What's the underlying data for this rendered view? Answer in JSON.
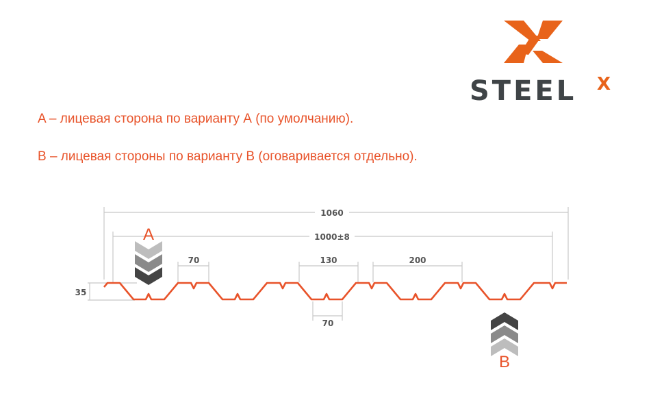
{
  "logo": {
    "text": "STEEL",
    "superscript": "X",
    "brand_color": "#e8631a",
    "text_color": "#3f4447"
  },
  "notes": [
    "A – лицевая сторона по варианту А (по умолчанию).",
    "B – лицевая стороны по варианту B (оговаривается отдельно)."
  ],
  "diagram": {
    "profile_color": "#e8532a",
    "dimensions": {
      "total_width": "1060",
      "working_width": "1000±8",
      "top_shelf": "70",
      "top_gap": "130",
      "pitch": "200",
      "bottom_shelf": "70",
      "height": "35"
    },
    "side_a_label": "A",
    "side_b_label": "B"
  }
}
